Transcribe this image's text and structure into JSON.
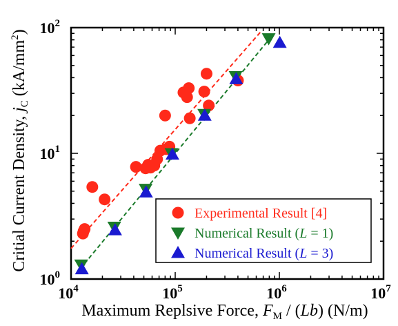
{
  "chart_data": {
    "type": "scatter",
    "xlabel": {
      "main": "Maximum Replsive Force, ",
      "var": "F",
      "sub": "M",
      "rest_before_italic": " / (",
      "italic": "Lb",
      "rest_after_italic": ") (N/m)"
    },
    "ylabel": {
      "main": "Critial Current Density, ",
      "var": "j",
      "sub": "C",
      "rest": " (kA/mm",
      "sup": "2",
      "end": ")"
    },
    "x_scale": "log",
    "y_scale": "log",
    "xlim": [
      10000,
      10000000
    ],
    "ylim": [
      1,
      100
    ],
    "x_ticks": [
      {
        "value": 10000,
        "base": "10",
        "exp": "4"
      },
      {
        "value": 100000,
        "base": "10",
        "exp": "5"
      },
      {
        "value": 1000000,
        "base": "10",
        "exp": "6"
      },
      {
        "value": 10000000,
        "base": "10",
        "exp": "7"
      }
    ],
    "y_ticks": [
      {
        "value": 1,
        "base": "10",
        "exp": "0"
      },
      {
        "value": 10,
        "base": "10",
        "exp": "1"
      },
      {
        "value": 100,
        "base": "10",
        "exp": "2"
      }
    ],
    "grid": false,
    "legend_position": "bottom-right",
    "series": [
      {
        "name": "Experimental Result [4]",
        "label_parts": {
          "text": "Experimental Result [4]"
        },
        "color": "#ff2a1a",
        "marker": "circle",
        "x": [
          13000,
          13200,
          13500,
          16000,
          21000,
          42000,
          52000,
          55000,
          58000,
          63000,
          67000,
          72000,
          80000,
          82000,
          88000,
          120000,
          130000,
          135000,
          138000,
          190000,
          200000,
          210000,
          400000
        ],
        "y": [
          2.3,
          2.4,
          2.5,
          5.4,
          4.3,
          7.8,
          7.6,
          8.1,
          7.7,
          8.0,
          9.0,
          10.5,
          20.0,
          10.8,
          11.3,
          30.5,
          28.0,
          33.0,
          19.0,
          31.0,
          43.0,
          24.0,
          38.0
        ]
      },
      {
        "name": "Numerical Result (L = 1)",
        "label_parts": {
          "pre": "Numerical Result (",
          "var": "L",
          "post": " = 1)"
        },
        "color": "#1a7a2a",
        "marker": "triangle-down",
        "x": [
          12500,
          26000,
          52000,
          92000,
          190000,
          380000,
          790000
        ],
        "y": [
          1.3,
          2.6,
          5.2,
          10.0,
          20.5,
          41.0,
          82.0
        ]
      },
      {
        "name": "Numerical Result (L = 3)",
        "label_parts": {
          "pre": "Numerical Result (",
          "var": "L",
          "post": " = 3)"
        },
        "color": "#1a1ad0",
        "marker": "triangle-up",
        "x": [
          12700,
          26500,
          52500,
          94000,
          192000,
          385000,
          1010000
        ],
        "y": [
          1.2,
          2.45,
          4.9,
          9.8,
          20.0,
          39.0,
          76.0
        ]
      }
    ],
    "fit_lines": [
      {
        "series": "Experimental Result [4]",
        "color": "#ff2a1a",
        "x": [
          10000,
          680000
        ],
        "y": [
          1.75,
          95.0
        ]
      },
      {
        "series": "Numerical Result",
        "color": "#1a7a2a",
        "x": [
          12200,
          840000
        ],
        "y": [
          1.2,
          85.0
        ]
      }
    ]
  }
}
